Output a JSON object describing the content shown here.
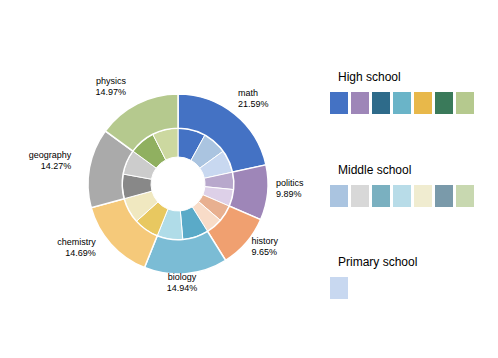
{
  "chart_data": {
    "type": "pie",
    "categories": [
      "math",
      "politics",
      "history",
      "biology",
      "chemistry",
      "geography",
      "physics"
    ],
    "values": [
      21.59,
      9.89,
      9.65,
      14.94,
      14.69,
      14.27,
      14.97
    ],
    "value_labels": [
      "21.59%",
      "9.89%",
      "9.65%",
      "14.94%",
      "14.69%",
      "14.27%",
      "14.97%"
    ],
    "colors": [
      "#4472c4",
      "#9e86b8",
      "#f0a070",
      "#7bbcd5",
      "#f5c97a",
      "#aaaaaa",
      "#b5c98e"
    ],
    "inner_ring": {
      "values": [
        8.0,
        7.0,
        6.59,
        5.0,
        4.89,
        4.8,
        4.85,
        7.5,
        7.44,
        7.3,
        7.39,
        7.1,
        7.17,
        7.5,
        7.47
      ],
      "colors": [
        "#4472c4",
        "#aac4e0",
        "#c8d8f0",
        "#b8a8cc",
        "#ddd0e8",
        "#e8b090",
        "#f8dcc8",
        "#5aaac8",
        "#b0dce8",
        "#e8c860",
        "#f0e8c0",
        "#888888",
        "#cccccc",
        "#90b060",
        "#ccd8a0"
      ]
    },
    "legend_sections": [
      {
        "name": "High school",
        "colors": [
          "#4472c4",
          "#9e86b8",
          "#2e6b8a",
          "#6ab4c8",
          "#e8b84a",
          "#3a7a5a",
          "#b5c98e"
        ]
      },
      {
        "name": "Middle school",
        "colors": [
          "#aac4e0",
          "#d8d8d8",
          "#7ab0c0",
          "#b8dce8",
          "#f0ecd0",
          "#7a9aaa",
          "#c8d8b0"
        ]
      },
      {
        "name": "Primary school",
        "colors": [
          "#c8d8f0"
        ]
      }
    ]
  }
}
